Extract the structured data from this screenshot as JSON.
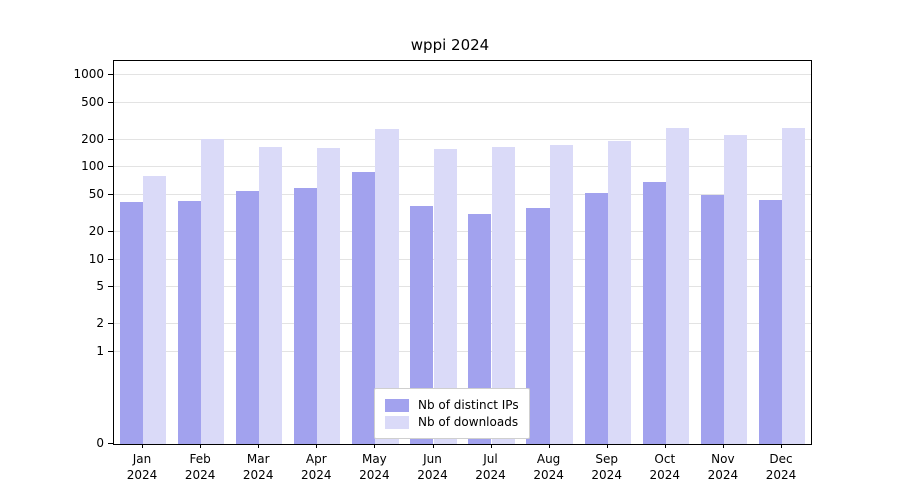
{
  "title": "wppi 2024",
  "chart_data": {
    "type": "bar",
    "title": "wppi 2024",
    "scale": "symlog",
    "grid": true,
    "legend_position": "lower center",
    "year": "2024",
    "categories": [
      "Jan",
      "Feb",
      "Mar",
      "Apr",
      "May",
      "Jun",
      "Jul",
      "Aug",
      "Sep",
      "Oct",
      "Nov",
      "Dec"
    ],
    "yticks": [
      0,
      1,
      2,
      5,
      10,
      20,
      50,
      100,
      200,
      500,
      1000
    ],
    "ylim": [
      0,
      1300
    ],
    "series": [
      {
        "name": "Nb of distinct IPs",
        "color": "#a2a2ee",
        "values": [
          42,
          43,
          55,
          60,
          90,
          38,
          31,
          36,
          52,
          70,
          50,
          44
        ]
      },
      {
        "name": "Nb of downloads",
        "color": "#dadaf8",
        "values": [
          80,
          205,
          165,
          163,
          260,
          156,
          165,
          174,
          192,
          270,
          225,
          270
        ]
      }
    ],
    "colors": {
      "grid": "#e3e3e3",
      "axis": "#000000",
      "background": "#ffffff"
    }
  }
}
